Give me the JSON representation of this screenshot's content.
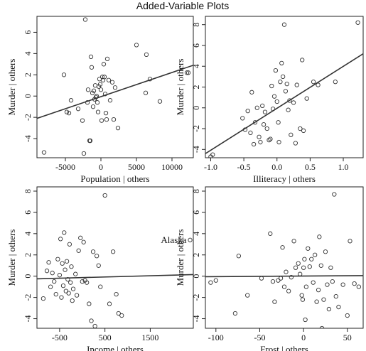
{
  "figure_title": "Added-Variable Plots",
  "chart_data": [
    {
      "type": "scatter",
      "xlabel": "Population | others",
      "ylabel": "Murder | others",
      "xlim": [
        -9000,
        13000
      ],
      "ylim": [
        -5.8,
        7.5
      ],
      "xticks": [
        {
          "v": -5000,
          "t": "-5000"
        },
        {
          "v": 0,
          "t": "0"
        },
        {
          "v": 5000,
          "t": "5000"
        },
        {
          "v": 10000,
          "t": "10000"
        }
      ],
      "yticks": [
        {
          "v": -4,
          "t": "-4"
        },
        {
          "v": -2,
          "t": "-2"
        },
        {
          "v": 0,
          "t": "0"
        },
        {
          "v": 2,
          "t": "2"
        },
        {
          "v": 4,
          "t": "4"
        },
        {
          "v": 6,
          "t": "6"
        }
      ],
      "fit": {
        "x": [
          -9000,
          13000
        ],
        "y": [
          -2.1,
          2.9
        ]
      },
      "points": [
        {
          "x": -8000,
          "y": -5.3
        },
        {
          "x": -5200,
          "y": 2.0
        },
        {
          "x": -4800,
          "y": -1.5
        },
        {
          "x": -4500,
          "y": -1.6
        },
        {
          "x": -4200,
          "y": -0.4
        },
        {
          "x": -3200,
          "y": -1.2
        },
        {
          "x": -2600,
          "y": -2.3
        },
        {
          "x": -2400,
          "y": -5.4
        },
        {
          "x": -2200,
          "y": 7.2
        },
        {
          "x": -1900,
          "y": -0.6
        },
        {
          "x": -1800,
          "y": 0.6
        },
        {
          "x": -1600,
          "y": -4.2
        },
        {
          "x": -1500,
          "y": -4.2
        },
        {
          "x": -1400,
          "y": 3.7
        },
        {
          "x": -1300,
          "y": 2.7
        },
        {
          "x": -1200,
          "y": 0.3
        },
        {
          "x": -1100,
          "y": -1.0
        },
        {
          "x": -1000,
          "y": 0.5
        },
        {
          "x": -900,
          "y": -0.3
        },
        {
          "x": -800,
          "y": 1.0
        },
        {
          "x": -700,
          "y": -0.1
        },
        {
          "x": -600,
          "y": 0.0
        },
        {
          "x": -500,
          "y": -0.6
        },
        {
          "x": -400,
          "y": -1.5
        },
        {
          "x": -300,
          "y": 0.9
        },
        {
          "x": -200,
          "y": 1.6
        },
        {
          "x": -100,
          "y": 1.1
        },
        {
          "x": 0,
          "y": 0.6
        },
        {
          "x": 100,
          "y": -2.3
        },
        {
          "x": 200,
          "y": 1.8
        },
        {
          "x": 300,
          "y": 1.5
        },
        {
          "x": 400,
          "y": 3.0
        },
        {
          "x": 500,
          "y": 1.8
        },
        {
          "x": 600,
          "y": 0.2
        },
        {
          "x": 700,
          "y": -1.6
        },
        {
          "x": 800,
          "y": -2.2
        },
        {
          "x": 900,
          "y": 3.5
        },
        {
          "x": 1100,
          "y": 1.5
        },
        {
          "x": 1300,
          "y": -0.4
        },
        {
          "x": 1600,
          "y": 1.3
        },
        {
          "x": 1800,
          "y": -2.2
        },
        {
          "x": 2000,
          "y": 0.8
        },
        {
          "x": 2400,
          "y": -3.0
        },
        {
          "x": 5000,
          "y": 4.8
        },
        {
          "x": 6300,
          "y": 0.3
        },
        {
          "x": 6400,
          "y": 3.9
        },
        {
          "x": 6900,
          "y": 1.6
        },
        {
          "x": 8300,
          "y": -0.5
        },
        {
          "x": 12100,
          "y": 2.2
        },
        {
          "x": 12300,
          "y": 2.2
        }
      ]
    },
    {
      "type": "scatter",
      "xlabel": "Illiteracy | others",
      "ylabel": "Murder | others",
      "xlim": [
        -1.08,
        1.3
      ],
      "ylim": [
        -4.8,
        8.8
      ],
      "xticks": [
        {
          "v": -1.0,
          "t": "-1.0"
        },
        {
          "v": -0.5,
          "t": "-0.5"
        },
        {
          "v": 0.0,
          "t": "0.0"
        },
        {
          "v": 0.5,
          "t": "0.5"
        },
        {
          "v": 1.0,
          "t": "1.0"
        }
      ],
      "yticks": [
        {
          "v": -4,
          "t": "-4"
        },
        {
          "v": -2,
          "t": "-2"
        },
        {
          "v": 0,
          "t": "0"
        },
        {
          "v": 2,
          "t": "2"
        },
        {
          "v": 4,
          "t": "4"
        },
        {
          "v": 6,
          "t": "6"
        },
        {
          "v": 8,
          "t": "8"
        }
      ],
      "fit": {
        "x": [
          -1.08,
          1.3
        ],
        "y": [
          -4.4,
          5.2
        ]
      },
      "points": [
        {
          "x": -1.0,
          "y": -4.7
        },
        {
          "x": -0.97,
          "y": -4.5
        },
        {
          "x": -0.52,
          "y": -1.0
        },
        {
          "x": -0.48,
          "y": -2.1
        },
        {
          "x": -0.44,
          "y": -0.3
        },
        {
          "x": -0.4,
          "y": -2.4
        },
        {
          "x": -0.38,
          "y": 1.5
        },
        {
          "x": -0.35,
          "y": -3.5
        },
        {
          "x": -0.33,
          "y": -1.4
        },
        {
          "x": -0.3,
          "y": 0.0
        },
        {
          "x": -0.27,
          "y": -2.8
        },
        {
          "x": -0.25,
          "y": -3.3
        },
        {
          "x": -0.22,
          "y": 0.2
        },
        {
          "x": -0.2,
          "y": -1.6
        },
        {
          "x": -0.18,
          "y": -0.4
        },
        {
          "x": -0.15,
          "y": -2.0
        },
        {
          "x": -0.12,
          "y": -3.1
        },
        {
          "x": -0.1,
          "y": -3.0
        },
        {
          "x": -0.08,
          "y": 2.1
        },
        {
          "x": -0.06,
          "y": -0.1
        },
        {
          "x": -0.04,
          "y": 1.1
        },
        {
          "x": -0.02,
          "y": 3.6
        },
        {
          "x": 0.0,
          "y": 0.6
        },
        {
          "x": 0.02,
          "y": -1.4
        },
        {
          "x": 0.03,
          "y": -3.3
        },
        {
          "x": 0.05,
          "y": 2.5
        },
        {
          "x": 0.07,
          "y": 4.3
        },
        {
          "x": 0.09,
          "y": 3.0
        },
        {
          "x": 0.11,
          "y": 8.0
        },
        {
          "x": 0.13,
          "y": 1.6
        },
        {
          "x": 0.15,
          "y": 2.3
        },
        {
          "x": 0.17,
          "y": -0.2
        },
        {
          "x": 0.19,
          "y": 0.7
        },
        {
          "x": 0.21,
          "y": -2.6
        },
        {
          "x": 0.25,
          "y": 0.5
        },
        {
          "x": 0.28,
          "y": -3.4
        },
        {
          "x": 0.3,
          "y": 2.2
        },
        {
          "x": 0.35,
          "y": -2.0
        },
        {
          "x": 0.38,
          "y": 4.6
        },
        {
          "x": 0.4,
          "y": -2.2
        },
        {
          "x": 0.45,
          "y": 0.9
        },
        {
          "x": 0.55,
          "y": 2.5
        },
        {
          "x": 0.62,
          "y": 2.2
        },
        {
          "x": 0.88,
          "y": 2.5
        },
        {
          "x": 1.22,
          "y": 8.2
        }
      ]
    },
    {
      "type": "scatter",
      "xlabel": "Income | others",
      "ylabel": "Murder | others",
      "xlim": [
        -1000,
        2450
      ],
      "ylim": [
        -4.9,
        8.4
      ],
      "xticks": [
        {
          "v": -500,
          "t": "-500"
        },
        {
          "v": 500,
          "t": "500"
        },
        {
          "v": 1500,
          "t": "1500"
        }
      ],
      "yticks": [
        {
          "v": -4,
          "t": "-4"
        },
        {
          "v": -2,
          "t": "-2"
        },
        {
          "v": 0,
          "t": "0"
        },
        {
          "v": 2,
          "t": "2"
        },
        {
          "v": 4,
          "t": "4"
        },
        {
          "v": 6,
          "t": "6"
        },
        {
          "v": 8,
          "t": "8"
        }
      ],
      "fit": {
        "x": [
          -1000,
          2450
        ],
        "y": [
          -0.25,
          0.15
        ]
      },
      "annotation": {
        "text": "Alaska",
        "x": 2380,
        "y": 3.4
      },
      "points": [
        {
          "x": -860,
          "y": -2.1
        },
        {
          "x": -780,
          "y": 0.5
        },
        {
          "x": -740,
          "y": 1.3
        },
        {
          "x": -700,
          "y": -1.0
        },
        {
          "x": -660,
          "y": 0.3
        },
        {
          "x": -620,
          "y": -0.5
        },
        {
          "x": -580,
          "y": -1.7
        },
        {
          "x": -540,
          "y": 1.6
        },
        {
          "x": -500,
          "y": 0.1
        },
        {
          "x": -480,
          "y": 3.5
        },
        {
          "x": -460,
          "y": -2.0
        },
        {
          "x": -440,
          "y": 1.2
        },
        {
          "x": -420,
          "y": -0.9
        },
        {
          "x": -400,
          "y": 4.1
        },
        {
          "x": -380,
          "y": 0.6
        },
        {
          "x": -360,
          "y": -1.4
        },
        {
          "x": -340,
          "y": 1.4
        },
        {
          "x": -320,
          "y": -0.3
        },
        {
          "x": -300,
          "y": -1.6
        },
        {
          "x": -280,
          "y": 3.0
        },
        {
          "x": -260,
          "y": -0.6
        },
        {
          "x": -240,
          "y": 0.9
        },
        {
          "x": -220,
          "y": -2.3
        },
        {
          "x": -200,
          "y": -1.2
        },
        {
          "x": -150,
          "y": 0.2
        },
        {
          "x": -120,
          "y": -1.8
        },
        {
          "x": -80,
          "y": 2.4
        },
        {
          "x": -40,
          "y": 3.6
        },
        {
          "x": 0,
          "y": -0.5
        },
        {
          "x": 30,
          "y": 3.2
        },
        {
          "x": 60,
          "y": -0.4
        },
        {
          "x": 100,
          "y": -0.6
        },
        {
          "x": 150,
          "y": -2.6
        },
        {
          "x": 200,
          "y": -4.2
        },
        {
          "x": 240,
          "y": 2.3
        },
        {
          "x": 280,
          "y": -4.7
        },
        {
          "x": 320,
          "y": 1.9
        },
        {
          "x": 360,
          "y": 1.0
        },
        {
          "x": 400,
          "y": -1.0
        },
        {
          "x": 500,
          "y": 7.6
        },
        {
          "x": 600,
          "y": -2.6
        },
        {
          "x": 680,
          "y": 2.3
        },
        {
          "x": 750,
          "y": -1.7
        },
        {
          "x": 800,
          "y": -3.5
        },
        {
          "x": 870,
          "y": -3.7
        },
        {
          "x": 2380,
          "y": 3.4
        }
      ]
    },
    {
      "type": "scatter",
      "xlabel": "Frost | others",
      "ylabel": "Murder | others",
      "xlim": [
        -112,
        68
      ],
      "ylim": [
        -4.9,
        8.4
      ],
      "xticks": [
        {
          "v": -100,
          "t": "-100"
        },
        {
          "v": -50,
          "t": "-50"
        },
        {
          "v": 0,
          "t": "0"
        },
        {
          "v": 50,
          "t": "50"
        }
      ],
      "yticks": [
        {
          "v": -4,
          "t": "-4"
        },
        {
          "v": -2,
          "t": "-2"
        },
        {
          "v": 0,
          "t": "0"
        },
        {
          "v": 2,
          "t": "2"
        },
        {
          "v": 4,
          "t": "4"
        },
        {
          "v": 6,
          "t": "6"
        },
        {
          "v": 8,
          "t": "8"
        }
      ],
      "fit": {
        "x": [
          -112,
          68
        ],
        "y": [
          -0.05,
          0.05
        ]
      },
      "points": [
        {
          "x": -106,
          "y": -0.6
        },
        {
          "x": -100,
          "y": -0.4
        },
        {
          "x": -78,
          "y": -3.5
        },
        {
          "x": -74,
          "y": 1.9
        },
        {
          "x": -64,
          "y": -1.8
        },
        {
          "x": -48,
          "y": -0.2
        },
        {
          "x": -38,
          "y": 4.0
        },
        {
          "x": -35,
          "y": -0.5
        },
        {
          "x": -33,
          "y": -2.4
        },
        {
          "x": -29,
          "y": -0.4
        },
        {
          "x": -26,
          "y": -0.2
        },
        {
          "x": -24,
          "y": 2.7
        },
        {
          "x": -22,
          "y": -1.0
        },
        {
          "x": -20,
          "y": 0.4
        },
        {
          "x": -17,
          "y": -1.4
        },
        {
          "x": -14,
          "y": -0.1
        },
        {
          "x": -11,
          "y": 3.3
        },
        {
          "x": -9,
          "y": 0.8
        },
        {
          "x": -6,
          "y": 1.2
        },
        {
          "x": -4,
          "y": 0.2
        },
        {
          "x": -2,
          "y": -1.8
        },
        {
          "x": -1,
          "y": -2.2
        },
        {
          "x": 0,
          "y": 0.8
        },
        {
          "x": 1,
          "y": 1.6
        },
        {
          "x": 2,
          "y": -4.1
        },
        {
          "x": 3,
          "y": -1.0
        },
        {
          "x": 5,
          "y": 2.6
        },
        {
          "x": 7,
          "y": 0.9
        },
        {
          "x": 9,
          "y": 1.6
        },
        {
          "x": 11,
          "y": -0.6
        },
        {
          "x": 13,
          "y": 2.0
        },
        {
          "x": 15,
          "y": -2.4
        },
        {
          "x": 17,
          "y": -1.3
        },
        {
          "x": 18,
          "y": 3.7
        },
        {
          "x": 20,
          "y": 1.0
        },
        {
          "x": 21,
          "y": -4.9
        },
        {
          "x": 23,
          "y": -2.2
        },
        {
          "x": 25,
          "y": 2.3
        },
        {
          "x": 27,
          "y": -0.8
        },
        {
          "x": 29,
          "y": -3.1
        },
        {
          "x": 31,
          "y": 0.8
        },
        {
          "x": 33,
          "y": -0.5
        },
        {
          "x": 35,
          "y": 7.7
        },
        {
          "x": 37,
          "y": -1.9
        },
        {
          "x": 40,
          "y": -2.9
        },
        {
          "x": 45,
          "y": -0.8
        },
        {
          "x": 50,
          "y": -3.7
        },
        {
          "x": 53,
          "y": 3.3
        },
        {
          "x": 58,
          "y": -0.7
        },
        {
          "x": 63,
          "y": -1.0
        }
      ]
    }
  ]
}
